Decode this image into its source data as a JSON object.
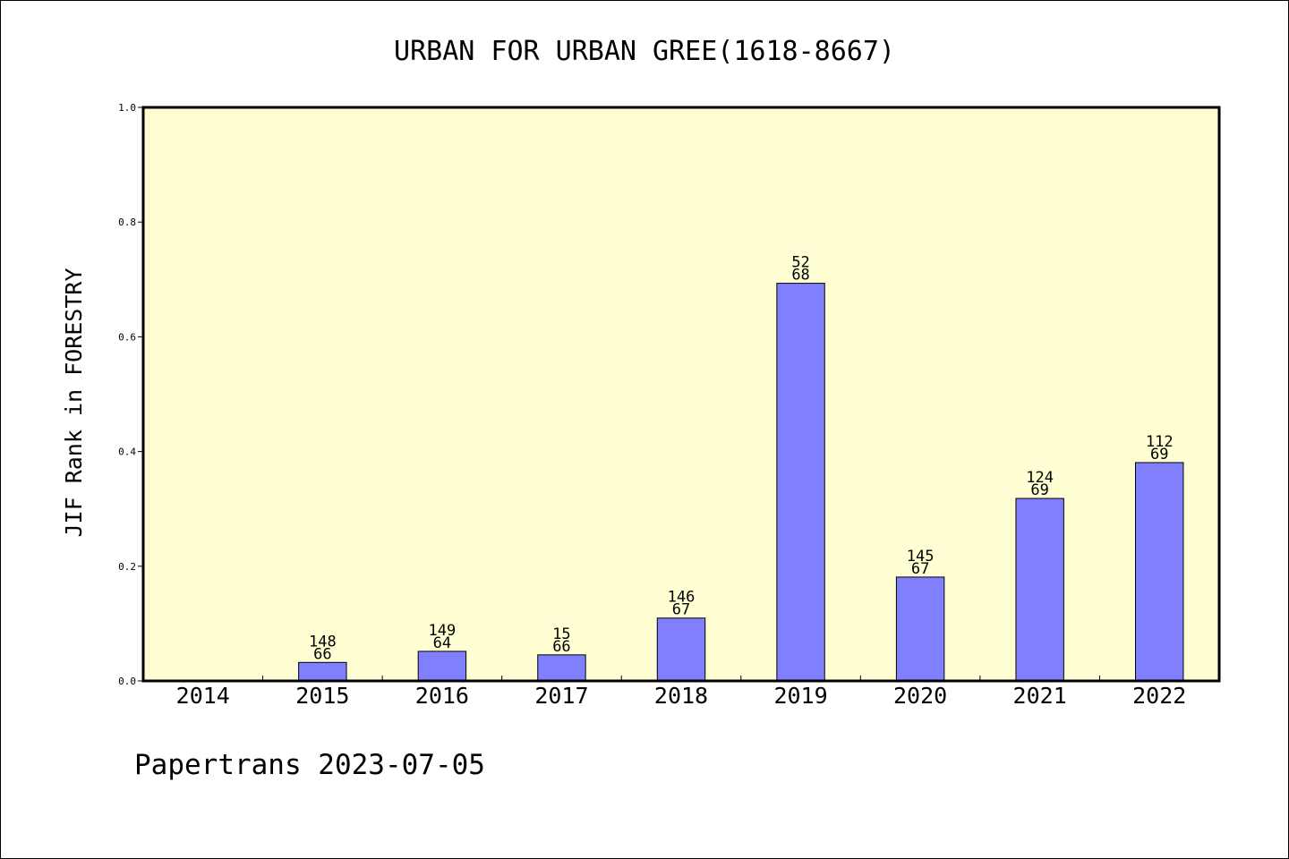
{
  "chart_data": {
    "type": "bar",
    "title": "URBAN FOR URBAN GREE(1618-8667)",
    "ylabel": "JIF Rank in FORESTRY",
    "xlabel": "",
    "footer": "Papertrans 2023-07-05",
    "categories": [
      "2014",
      "2015",
      "2016",
      "2017",
      "2018",
      "2019",
      "2020",
      "2021",
      "2022"
    ],
    "values": [
      null,
      0.0323,
      0.0516,
      0.0455,
      0.1096,
      0.6933,
      0.1811,
      0.3182,
      0.3807
    ],
    "bar_labels": [
      [
        "",
        ""
      ],
      [
        "148",
        "66"
      ],
      [
        "149",
        "64"
      ],
      [
        "15",
        "66"
      ],
      [
        "146",
        "67"
      ],
      [
        "52",
        "68"
      ],
      [
        "145",
        "67"
      ],
      [
        "124",
        "69"
      ],
      [
        "112",
        "69"
      ]
    ],
    "ylim": [
      0,
      1.0
    ],
    "yticks": [
      "0.0",
      "0.2",
      "0.4",
      "0.6",
      "0.8",
      "1.0"
    ],
    "grid": false,
    "colors": {
      "plot_background": "#ffffd3",
      "bar_fill": "#8080ff",
      "bar_stroke": "#000000",
      "text": "#000000"
    }
  }
}
